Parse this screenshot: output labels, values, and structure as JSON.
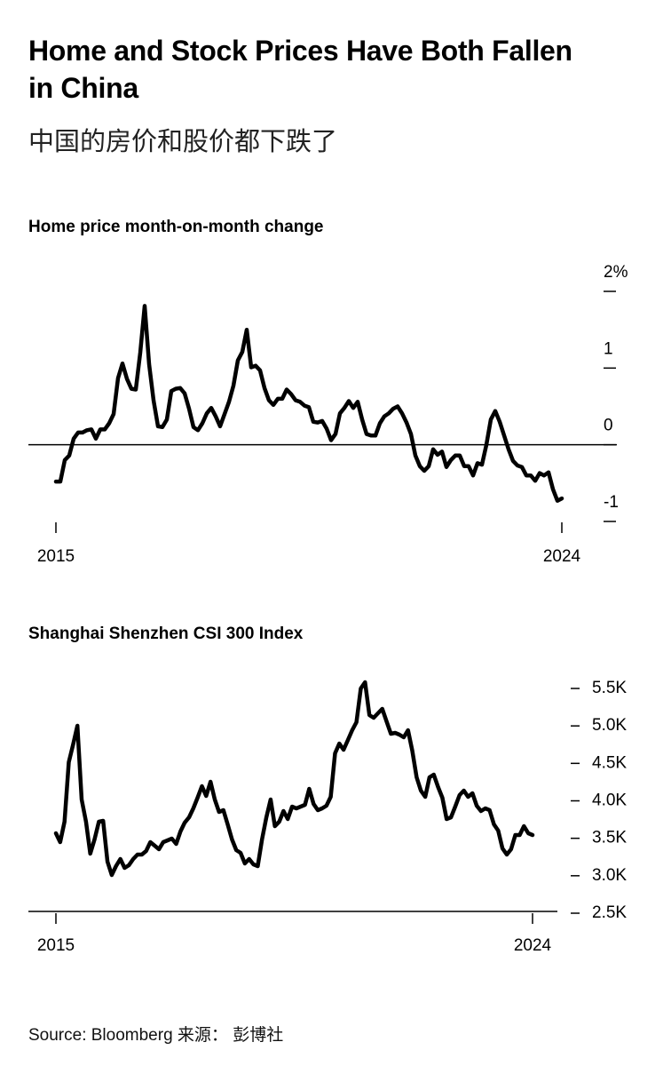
{
  "title": "Home and Stock Prices Have Both Fallen in China",
  "subtitle": "中国的房价和股价都下跌了",
  "source": "Source: Bloomberg 来源： 彭博社",
  "chart_data": [
    {
      "type": "line",
      "title": "Home price month-on-month change",
      "color": "#000000",
      "zero_line": true,
      "categories": [
        "2015",
        null,
        null,
        null,
        null,
        null,
        null,
        null,
        null,
        null,
        null,
        null,
        null,
        null,
        null,
        null,
        null,
        null,
        null,
        null,
        null,
        null,
        null,
        null,
        null,
        null,
        null,
        null,
        null,
        null,
        null,
        null,
        null,
        null,
        null,
        null,
        null,
        null,
        null,
        null,
        null,
        null,
        null,
        null,
        null,
        null,
        null,
        null,
        null,
        null,
        null,
        null,
        null,
        null,
        null,
        null,
        null,
        null,
        null,
        null,
        null,
        null,
        null,
        null,
        null,
        null,
        null,
        null,
        null,
        null,
        null,
        null,
        null,
        null,
        null,
        null,
        null,
        null,
        null,
        null,
        null,
        null,
        null,
        null,
        null,
        null,
        null,
        null,
        null,
        null,
        null,
        null,
        null,
        null,
        null,
        null,
        null,
        null,
        null,
        null,
        null,
        null,
        null,
        null,
        null,
        null,
        null,
        null,
        null,
        null,
        null,
        null,
        null,
        null,
        "2024"
      ],
      "values": [
        -0.48,
        -0.48,
        -0.2,
        -0.14,
        0.08,
        0.16,
        0.16,
        0.19,
        0.2,
        0.08,
        0.2,
        0.2,
        0.28,
        0.4,
        0.87,
        1.06,
        0.86,
        0.73,
        0.72,
        1.2,
        1.81,
        1.05,
        0.58,
        0.24,
        0.23,
        0.33,
        0.7,
        0.73,
        0.74,
        0.67,
        0.47,
        0.23,
        0.19,
        0.28,
        0.41,
        0.48,
        0.37,
        0.24,
        0.4,
        0.56,
        0.77,
        1.1,
        1.21,
        1.5,
        1.01,
        1.03,
        0.97,
        0.74,
        0.58,
        0.52,
        0.6,
        0.6,
        0.72,
        0.66,
        0.58,
        0.56,
        0.51,
        0.49,
        0.3,
        0.29,
        0.31,
        0.21,
        0.06,
        0.14,
        0.41,
        0.48,
        0.57,
        0.48,
        0.56,
        0.33,
        0.14,
        0.12,
        0.12,
        0.28,
        0.37,
        0.41,
        0.47,
        0.5,
        0.41,
        0.29,
        0.14,
        -0.14,
        -0.28,
        -0.34,
        -0.28,
        -0.06,
        -0.13,
        -0.09,
        -0.29,
        -0.2,
        -0.14,
        -0.14,
        -0.28,
        -0.28,
        -0.4,
        -0.24,
        -0.26,
        0,
        0.33,
        0.44,
        0.3,
        0.12,
        -0.06,
        -0.21,
        -0.27,
        -0.29,
        -0.4,
        -0.4,
        -0.47,
        -0.37,
        -0.4,
        -0.36,
        -0.58,
        -0.73,
        -0.7
      ],
      "ylim": [
        -1,
        2
      ],
      "yticks": [
        {
          "value": 2,
          "label": "2%"
        },
        1,
        0,
        -1
      ]
    },
    {
      "type": "line",
      "title": "Shanghai Shenzhen CSI 300 Index",
      "color": "#000000",
      "categories": [
        "2015",
        null,
        null,
        null,
        null,
        null,
        null,
        null,
        null,
        null,
        null,
        null,
        null,
        null,
        null,
        null,
        null,
        null,
        null,
        null,
        null,
        null,
        null,
        null,
        null,
        null,
        null,
        null,
        null,
        null,
        null,
        null,
        null,
        null,
        null,
        null,
        null,
        null,
        null,
        null,
        null,
        null,
        null,
        null,
        null,
        null,
        null,
        null,
        null,
        null,
        null,
        null,
        null,
        null,
        null,
        null,
        null,
        null,
        null,
        null,
        null,
        null,
        null,
        null,
        null,
        null,
        null,
        null,
        null,
        null,
        null,
        null,
        null,
        null,
        null,
        null,
        null,
        null,
        null,
        null,
        null,
        null,
        null,
        null,
        null,
        null,
        null,
        null,
        null,
        null,
        null,
        null,
        null,
        null,
        null,
        null,
        null,
        null,
        null,
        null,
        null,
        null,
        null,
        null,
        null,
        null,
        null,
        null,
        null,
        null,
        null,
        "2024"
      ],
      "values": [
        3567,
        3449,
        3721,
        4516,
        4753,
        5002,
        4018,
        3721,
        3294,
        3484,
        3721,
        3733,
        3188,
        3010,
        3128,
        3223,
        3105,
        3140,
        3223,
        3283,
        3283,
        3330,
        3449,
        3401,
        3354,
        3449,
        3472,
        3496,
        3425,
        3591,
        3709,
        3780,
        3899,
        4041,
        4196,
        4065,
        4255,
        4018,
        3852,
        3875,
        3686,
        3484,
        3342,
        3306,
        3164,
        3223,
        3152,
        3128,
        3484,
        3780,
        4018,
        3662,
        3721,
        3864,
        3757,
        3923,
        3899,
        3923,
        3947,
        4160,
        3958,
        3875,
        3899,
        3935,
        4053,
        4634,
        4765,
        4682,
        4812,
        4943,
        5049,
        5500,
        5583,
        5144,
        5109,
        5168,
        5227,
        5061,
        4895,
        4907,
        4883,
        4848,
        4943,
        4670,
        4314,
        4136,
        4053,
        4314,
        4350,
        4184,
        4041,
        3757,
        3780,
        3923,
        4077,
        4136,
        4053,
        4101,
        3935,
        3864,
        3899,
        3875,
        3686,
        3603,
        3366,
        3283,
        3354,
        3543,
        3543,
        3662,
        3567,
        3543
      ],
      "ylim": [
        2500,
        5500
      ],
      "yticks": [
        {
          "value": 5500,
          "label": "5.5K"
        },
        {
          "value": 5000,
          "label": "5.0K"
        },
        {
          "value": 4500,
          "label": "4.5K"
        },
        {
          "value": 4000,
          "label": "4.0K"
        },
        {
          "value": 3500,
          "label": "3.5K"
        },
        {
          "value": 3000,
          "label": "3.0K"
        },
        {
          "value": 2500,
          "label": "2.5K"
        }
      ]
    }
  ]
}
